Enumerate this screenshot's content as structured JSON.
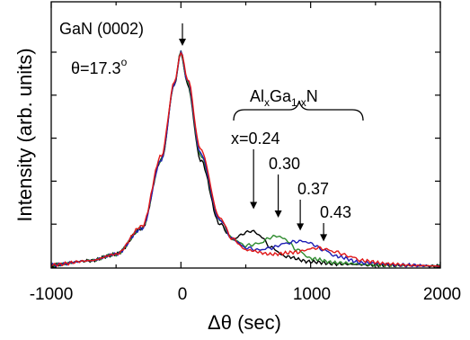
{
  "chart_data": {
    "type": "line",
    "xlabel": "Δθ (sec)",
    "ylabel": "Intensity (arb. units)",
    "xlim": [
      -1000,
      2000
    ],
    "ylim": [
      0,
      1.0
    ],
    "x_ticks": [
      "-1000",
      "0",
      "1000",
      "2000"
    ],
    "y_ticks_labeled": false,
    "grid": false,
    "legend": "none",
    "series": [
      {
        "color": "#000000",
        "x": [
          -1000,
          -700,
          -500,
          -300,
          -150,
          -50,
          0,
          50,
          150,
          300,
          400,
          500,
          550,
          600,
          700,
          800,
          1000,
          1200,
          1500,
          2000
        ],
        "values": [
          0.01,
          0.03,
          0.06,
          0.18,
          0.5,
          0.85,
          1.0,
          0.85,
          0.5,
          0.2,
          0.13,
          0.16,
          0.17,
          0.15,
          0.09,
          0.05,
          0.025,
          0.015,
          0.01,
          0.005
        ]
      },
      {
        "color": "#2e8b2e",
        "x": [
          -1000,
          -700,
          -500,
          -300,
          -150,
          -50,
          0,
          50,
          150,
          300,
          400,
          500,
          600,
          700,
          750,
          800,
          900,
          1000,
          1200,
          1500,
          2000
        ],
        "values": [
          0.01,
          0.03,
          0.06,
          0.18,
          0.5,
          0.85,
          1.0,
          0.86,
          0.52,
          0.22,
          0.13,
          0.1,
          0.11,
          0.14,
          0.145,
          0.13,
          0.08,
          0.04,
          0.02,
          0.01,
          0.005
        ]
      },
      {
        "color": "#1c1cb4",
        "x": [
          -1000,
          -700,
          -500,
          -300,
          -150,
          -50,
          0,
          50,
          150,
          300,
          400,
          500,
          600,
          700,
          800,
          900,
          950,
          1000,
          1100,
          1200,
          1400,
          1700,
          2000
        ],
        "values": [
          0.01,
          0.03,
          0.06,
          0.18,
          0.5,
          0.85,
          1.0,
          0.87,
          0.53,
          0.22,
          0.13,
          0.09,
          0.08,
          0.09,
          0.11,
          0.12,
          0.12,
          0.11,
          0.08,
          0.05,
          0.02,
          0.01,
          0.005
        ]
      },
      {
        "color": "#e01818",
        "x": [
          -1000,
          -700,
          -500,
          -300,
          -150,
          -50,
          0,
          50,
          150,
          300,
          400,
          500,
          700,
          900,
          1000,
          1050,
          1100,
          1200,
          1300,
          1400,
          1600,
          1800,
          2000
        ],
        "values": [
          0.01,
          0.03,
          0.06,
          0.19,
          0.52,
          0.86,
          1.0,
          0.88,
          0.55,
          0.23,
          0.13,
          0.08,
          0.06,
          0.07,
          0.085,
          0.09,
          0.085,
          0.07,
          0.05,
          0.03,
          0.015,
          0.008,
          0.005
        ]
      }
    ],
    "annotations": {
      "peak_label": "GaN (0002)",
      "theta_label": "θ=17.3",
      "theta_sup": "o",
      "alloy_prefix": "Al",
      "alloy_sub_x": "x",
      "alloy_mid": "Ga",
      "alloy_sub_1x": "1-x",
      "alloy_suffix": "N",
      "compositions": [
        {
          "label": "x=0.24",
          "arrow_x": 560,
          "arrow_y": 0.27
        },
        {
          "label": "0.30",
          "arrow_x": 750,
          "arrow_y": 0.23
        },
        {
          "label": "0.37",
          "arrow_x": 920,
          "arrow_y": 0.17
        },
        {
          "label": "0.43",
          "arrow_x": 1100,
          "arrow_y": 0.12
        }
      ]
    }
  }
}
